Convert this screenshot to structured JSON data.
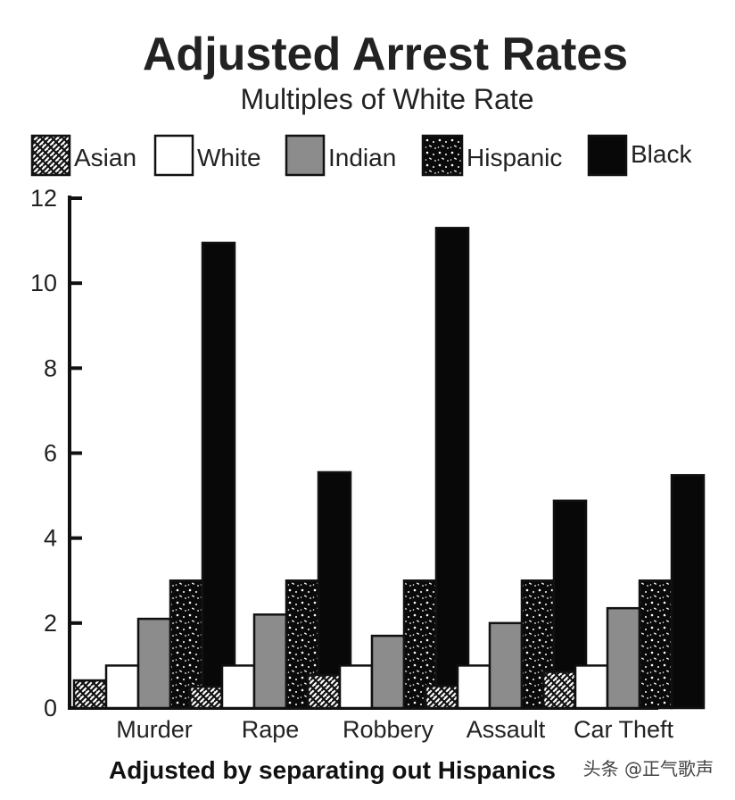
{
  "chart_data": {
    "type": "bar",
    "title": "Adjusted Arrest Rates",
    "subtitle": "Multiples of White Rate",
    "xlabel": "Adjusted by separating out Hispanics",
    "ylabel": "",
    "ylim": [
      0,
      12
    ],
    "yticks": [
      0,
      2,
      4,
      6,
      8,
      10,
      12
    ],
    "legend_position": "top",
    "categories": [
      "Murder",
      "Rape",
      "Robbery",
      "Assault",
      "Car Theft"
    ],
    "series": [
      {
        "name": "Asian",
        "pattern": "crosshatch",
        "values": [
          0.65,
          0.5,
          0.78,
          0.52,
          0.85
        ]
      },
      {
        "name": "White",
        "pattern": "white",
        "values": [
          1,
          1,
          1,
          1,
          1
        ]
      },
      {
        "name": "Indian",
        "pattern": "gray",
        "values": [
          2.1,
          2.2,
          1.7,
          2.0,
          2.35
        ]
      },
      {
        "name": "Hispanic",
        "pattern": "speckle",
        "values": [
          3.0,
          3.0,
          3.0,
          3.0,
          3.0
        ]
      },
      {
        "name": "Black",
        "pattern": "black",
        "values": [
          10.95,
          5.55,
          11.3,
          4.88,
          5.48
        ]
      }
    ]
  },
  "colors": {
    "white": "#ffffff",
    "gray": "#8c8c8c",
    "black": "#080808",
    "stroke": "#111111"
  },
  "watermark": "头条 @正气歌声"
}
